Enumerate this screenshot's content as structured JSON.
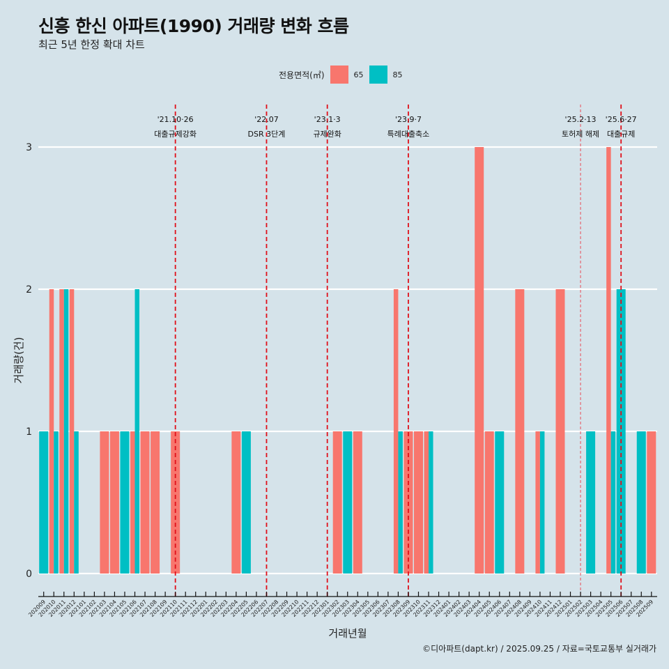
{
  "header": {
    "title": "신흥 한신 아파트(1990) 거래량 변화 흐름",
    "subtitle": "최근 5년 한정 확대 차트"
  },
  "legend": {
    "title": "전용면적(㎡)",
    "items": [
      {
        "label": "65",
        "color": "#F8766D"
      },
      {
        "label": "85",
        "color": "#00BFC4"
      }
    ]
  },
  "caption": "©디아파트(dapt.kr) / 2025.09.25 / 자료=국토교통부 실거래가",
  "chart_data": {
    "type": "bar",
    "title": "신흥 한신 아파트(1990) 거래량 변화 흐름",
    "subtitle": "최근 5년 한정 확대 차트",
    "xlabel": "거래년월",
    "ylabel": "거래량(건)",
    "ylim": [
      0,
      3
    ],
    "yticks": [
      0,
      1,
      2,
      3
    ],
    "grid": true,
    "legend_position": "top",
    "position": "dodge",
    "categories": [
      "202009",
      "202010",
      "202011",
      "202012",
      "202101",
      "202102",
      "202103",
      "202104",
      "202105",
      "202106",
      "202107",
      "202108",
      "202109",
      "202110",
      "202111",
      "202112",
      "202201",
      "202202",
      "202203",
      "202204",
      "202205",
      "202206",
      "202207",
      "202208",
      "202209",
      "202210",
      "202211",
      "202212",
      "202301",
      "202302",
      "202303",
      "202304",
      "202305",
      "202306",
      "202307",
      "202308",
      "202309",
      "202310",
      "202311",
      "202312",
      "202401",
      "202402",
      "202403",
      "202404",
      "202405",
      "202406",
      "202407",
      "202408",
      "202409",
      "202410",
      "202411",
      "202412",
      "202501",
      "202502",
      "202503",
      "202504",
      "202505",
      "202506",
      "202507",
      "202508",
      "202509"
    ],
    "series": [
      {
        "name": "65",
        "color": "#F8766D",
        "values": [
          0,
          2,
          2,
          2,
          0,
          0,
          1,
          1,
          0,
          1,
          1,
          1,
          0,
          1,
          0,
          0,
          0,
          0,
          0,
          1,
          0,
          0,
          0,
          0,
          0,
          0,
          0,
          0,
          0,
          1,
          0,
          1,
          0,
          0,
          0,
          2,
          1,
          1,
          1,
          0,
          0,
          0,
          0,
          3,
          1,
          0,
          0,
          2,
          0,
          1,
          0,
          2,
          0,
          0,
          0,
          0,
          3,
          0,
          0,
          0,
          1
        ]
      },
      {
        "name": "85",
        "color": "#00BFC4",
        "values": [
          1,
          1,
          2,
          1,
          0,
          0,
          0,
          0,
          1,
          2,
          0,
          0,
          0,
          0,
          0,
          0,
          0,
          0,
          0,
          0,
          1,
          0,
          0,
          0,
          0,
          0,
          0,
          0,
          0,
          0,
          1,
          0,
          0,
          0,
          0,
          1,
          0,
          0,
          1,
          0,
          0,
          0,
          0,
          0,
          0,
          1,
          0,
          0,
          0,
          1,
          0,
          0,
          0,
          0,
          1,
          0,
          1,
          2,
          0,
          1,
          0
        ]
      }
    ],
    "annotations": [
      {
        "x": "202110",
        "date": "'21.10·26",
        "label": "대출규제강화",
        "style": "bold"
      },
      {
        "x": "202207",
        "date": "'22.07",
        "label": "DSR 3단계",
        "style": "bold"
      },
      {
        "x": "202301",
        "date": "'23.1·3",
        "label": "규제완화",
        "style": "bold"
      },
      {
        "x": "202309",
        "date": "'23.9·7",
        "label": "특례대출축소",
        "style": "bold"
      },
      {
        "x": "202502",
        "date": "'25.2·13",
        "label": "토허제 해제",
        "style": "light"
      },
      {
        "x": "202506",
        "date": "'25.6·27",
        "label": "대출규제",
        "style": "bold"
      }
    ]
  }
}
